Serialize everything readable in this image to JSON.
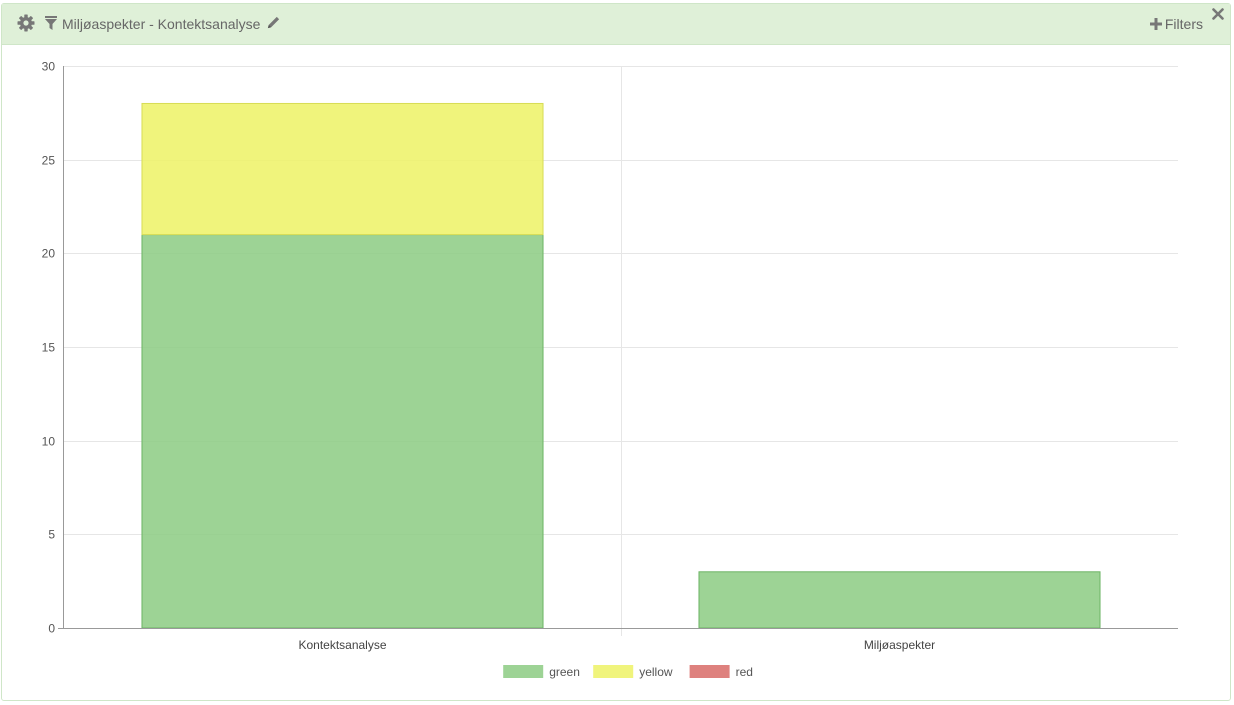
{
  "header": {
    "title": "Miljøaspekter - Kontektsanalyse",
    "filters_label": "Filters"
  },
  "colors": {
    "header_bg": "#dff0d8",
    "green": "#8fcd86",
    "yellow": "#eef36a",
    "red": "#d9706c"
  },
  "icons": [
    "gear-icon",
    "filter-icon",
    "pencil-icon",
    "plus-icon",
    "close-icon"
  ],
  "chart_data": {
    "type": "bar",
    "stacked": true,
    "categories": [
      "Kontektsanalyse",
      "Miljøaspekter"
    ],
    "series": [
      {
        "name": "green",
        "values": [
          21,
          3
        ],
        "color": "#8fcd86"
      },
      {
        "name": "yellow",
        "values": [
          7,
          0
        ],
        "color": "#eef36a"
      },
      {
        "name": "red",
        "values": [
          0,
          0
        ],
        "color": "#d9706c"
      }
    ],
    "ylim": [
      0,
      30
    ],
    "yticks": [
      0,
      5,
      10,
      15,
      20,
      25,
      30
    ],
    "grid": true,
    "legend_position": "bottom"
  }
}
